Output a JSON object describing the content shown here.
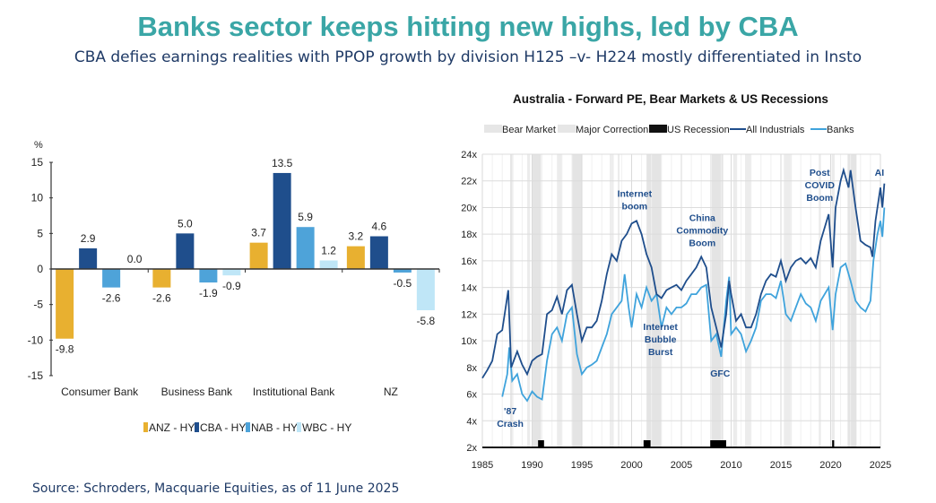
{
  "header": {
    "title": "Banks sector keeps hitting new highs, led by CBA",
    "subtitle": "CBA defies earnings realities with PPOP growth by division H125 –v- H224 mostly differentiated in Insto"
  },
  "footer": {
    "source": "Source: Schroders, Macquarie Equities, as of 11 June 2025"
  },
  "chart_data": [
    {
      "type": "bar",
      "ylabel": "%",
      "ylim": [
        -15,
        15
      ],
      "yticks": [
        15,
        10,
        5,
        0,
        -5,
        -10,
        -15
      ],
      "categories": [
        "Consumer Bank",
        "Business Bank",
        "Institutional Bank",
        "NZ"
      ],
      "series": [
        {
          "name": "ANZ - HY",
          "color": "#e8b030",
          "values": [
            -9.8,
            -2.6,
            3.7,
            3.2
          ]
        },
        {
          "name": "CBA - HY",
          "color": "#1f4e8c",
          "values": [
            2.9,
            5.0,
            13.5,
            4.6
          ]
        },
        {
          "name": "NAB - HY",
          "color": "#4ea3d9",
          "values": [
            -2.6,
            -1.9,
            5.9,
            -0.5
          ]
        },
        {
          "name": "WBC - HY",
          "color": "#bfe6f7",
          "values": [
            0.0,
            -0.9,
            1.2,
            -5.8
          ]
        }
      ],
      "legend": "bottom"
    },
    {
      "type": "line",
      "title": "Australia - Forward PE, Bear Markets & US Recessions",
      "xlim": [
        1985,
        2025.5
      ],
      "ylim": [
        2,
        24
      ],
      "xticks": [
        "1985",
        "1990",
        "1995",
        "2000",
        "2005",
        "2010",
        "2015",
        "2020",
        "2025"
      ],
      "yticks": [
        "2x",
        "4x",
        "6x",
        "8x",
        "10x",
        "12x",
        "14x",
        "16x",
        "18x",
        "20x",
        "22x",
        "24x"
      ],
      "grid": true,
      "legend": "top",
      "legend_items": {
        "bear": "Bear Market",
        "correction": "Major Correction",
        "recession": "US Recession"
      },
      "series": [
        {
          "name": "All Industrials",
          "color": "#1f4e8c",
          "x": [
            1985,
            1985.5,
            1986,
            1986.5,
            1987,
            1987.6,
            1987.9,
            1988.5,
            1989,
            1989.5,
            1990,
            1990.5,
            1991,
            1991.5,
            1992,
            1992.5,
            1993,
            1993.5,
            1994,
            1994.5,
            1995,
            1995.5,
            1996,
            1996.5,
            1997,
            1997.5,
            1998,
            1998.5,
            1999,
            1999.5,
            2000,
            2000.5,
            2001,
            2001.5,
            2002,
            2002.5,
            2003,
            2003.5,
            2004,
            2004.5,
            2005,
            2005.5,
            2006,
            2006.5,
            2007,
            2007.5,
            2008,
            2008.5,
            2009,
            2009.5,
            2009.8,
            2010,
            2010.5,
            2011,
            2011.5,
            2012,
            2012.5,
            2013,
            2013.5,
            2014,
            2014.5,
            2015,
            2015.5,
            2016,
            2016.5,
            2017,
            2017.5,
            2018,
            2018.5,
            2019,
            2019.8,
            2020.2,
            2020.5,
            2021,
            2021.3,
            2021.8,
            2022,
            2022.5,
            2023,
            2023.5,
            2024,
            2024.2,
            2024.5,
            2025,
            2025.2,
            2025.4
          ],
          "values": [
            7.2,
            7.8,
            8.5,
            10.5,
            10.8,
            13.8,
            8,
            9.2,
            8.2,
            7.5,
            8.5,
            8.8,
            9,
            12,
            12.3,
            13.3,
            12,
            13.8,
            14.2,
            12,
            10,
            11,
            11,
            11.5,
            13,
            15,
            16.5,
            16,
            17.5,
            18,
            18.8,
            19,
            18,
            16.5,
            15.5,
            13.5,
            13.2,
            13.8,
            14,
            14.2,
            13.8,
            14.5,
            15,
            15.5,
            16.3,
            15.5,
            12.5,
            11,
            9.5,
            12,
            14.5,
            13.5,
            11.5,
            12,
            11,
            11,
            12,
            13.5,
            14.5,
            15,
            14.8,
            16,
            14.5,
            15.5,
            16,
            16.2,
            15.8,
            16.2,
            15.5,
            17.5,
            19.5,
            15.5,
            20,
            22,
            22.8,
            21.5,
            22.8,
            20,
            17.5,
            17.2,
            17,
            16.3,
            19,
            21.5,
            20,
            21.8
          ]
        },
        {
          "name": "Banks",
          "color": "#3fa3dc",
          "x": [
            1987,
            1987.5,
            1987.7,
            1988,
            1988.5,
            1989,
            1989.5,
            1990,
            1990.5,
            1991,
            1991.5,
            1992,
            1992.5,
            1993,
            1993.5,
            1994,
            1994.5,
            1995,
            1995.5,
            1996,
            1996.5,
            1997,
            1997.5,
            1998,
            1998.5,
            1999,
            1999.3,
            1999.7,
            2000,
            2000.5,
            2001,
            2001.5,
            2002,
            2002.5,
            2003,
            2003.5,
            2004,
            2004.5,
            2005,
            2005.5,
            2006,
            2006.5,
            2007,
            2007.5,
            2008,
            2008.5,
            2009,
            2009.5,
            2009.8,
            2010,
            2010.5,
            2011,
            2011.5,
            2012,
            2012.5,
            2013,
            2013.5,
            2014,
            2014.5,
            2015,
            2015.5,
            2016,
            2016.5,
            2017,
            2017.5,
            2018,
            2018.5,
            2019,
            2019.8,
            2020.2,
            2020.5,
            2021,
            2021.5,
            2022,
            2022.5,
            2023,
            2023.5,
            2024,
            2024.3,
            2024.7,
            2025,
            2025.2,
            2025.4
          ],
          "values": [
            5.8,
            7.5,
            9.5,
            7,
            7.5,
            6,
            5.5,
            6.2,
            5.8,
            5.6,
            8.5,
            10.5,
            11,
            10,
            12,
            12.5,
            9,
            7.5,
            8,
            8.2,
            8.5,
            9.5,
            10.5,
            12,
            12.5,
            13,
            15,
            12.5,
            11,
            13.5,
            12.5,
            14,
            13,
            13.5,
            11,
            12.5,
            12,
            12.5,
            12.5,
            12.8,
            13.5,
            13.5,
            14,
            14.2,
            10,
            10.5,
            8.8,
            13,
            14.8,
            10.5,
            11,
            10.5,
            9.2,
            10,
            11,
            13,
            13.5,
            13.5,
            13.2,
            14.5,
            12,
            11.5,
            12.5,
            13.5,
            12.8,
            12.5,
            11.5,
            13,
            14,
            10.8,
            13.5,
            15.5,
            15.8,
            14.5,
            13,
            12.5,
            12.2,
            13,
            16,
            18,
            19,
            17.8,
            20
          ]
        }
      ],
      "bear_markets": [
        [
          1987.8,
          1988.1
        ],
        [
          1990.0,
          1990.9
        ],
        [
          1994.0,
          1995.0
        ],
        [
          2001.5,
          2003.0
        ],
        [
          2007.9,
          2009.2
        ],
        [
          2021.7,
          2022.6
        ]
      ],
      "major_corrections": [
        [
          1989.5,
          1989.8
        ],
        [
          1992.5,
          1993.0
        ],
        [
          1997.8,
          1998.2
        ],
        [
          1998.6,
          1998.8
        ],
        [
          2010.2,
          2010.6
        ],
        [
          2011.4,
          2012.0
        ],
        [
          2015.3,
          2016.1
        ],
        [
          2018.8,
          2019.0
        ],
        [
          2020.1,
          2020.4
        ]
      ],
      "us_recessions": [
        [
          1990.6,
          1991.2
        ],
        [
          2001.2,
          2001.9
        ],
        [
          2007.9,
          2009.5
        ],
        [
          2020.15,
          2020.35
        ]
      ],
      "annotations": [
        {
          "text": [
            "'87",
            "Crash"
          ],
          "x": 1987.8,
          "y": 4.5
        },
        {
          "text": [
            "Internet",
            "boom"
          ],
          "x": 2000.3,
          "y": 20.8
        },
        {
          "text": [
            "Internet",
            "Bubble",
            "Burst"
          ],
          "x": 2002.9,
          "y": 10.8
        },
        {
          "text": [
            "China",
            "Commodity",
            "Boom"
          ],
          "x": 2007.1,
          "y": 19
        },
        {
          "text": [
            "GFC"
          ],
          "x": 2008.9,
          "y": 7.3
        },
        {
          "text": [
            "Post",
            "COVID",
            "Boom"
          ],
          "x": 2018.9,
          "y": 22.4
        },
        {
          "text": [
            "AI"
          ],
          "x": 2024.9,
          "y": 22.4
        }
      ]
    }
  ]
}
